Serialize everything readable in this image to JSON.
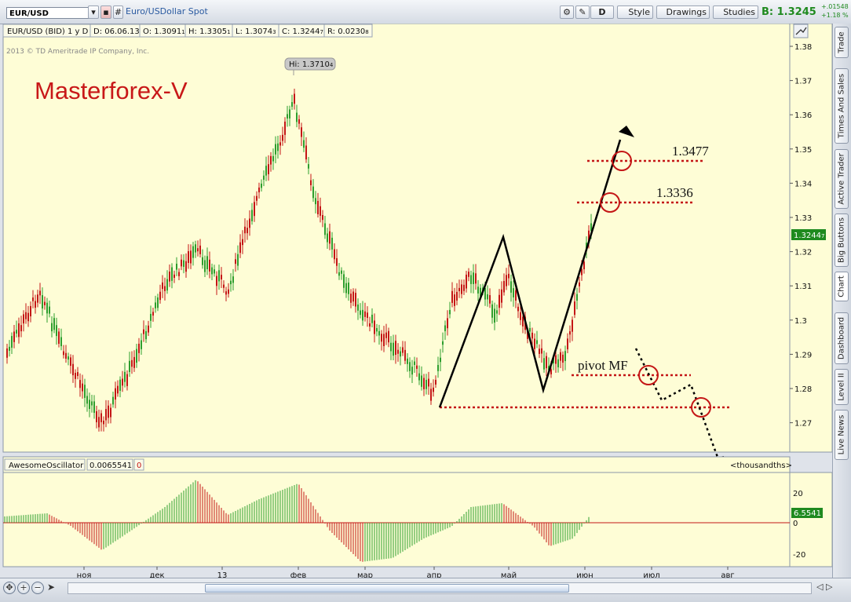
{
  "toolbar": {
    "symbol": "EUR/USD",
    "description": "Euro/USDollar Spot",
    "d_button": "D",
    "style_label": "Style",
    "drawings_label": "Drawings",
    "studies_label": "Studies",
    "bid_label": "B: 1.3245",
    "change_abs": "+.01548",
    "change_pct": "+1.18 %"
  },
  "info_bar": {
    "name": "EUR/USD (BID) 1 y D",
    "date": "D: 06.06.13",
    "open": "O: 1.3091",
    "high": "H: 1.3305",
    "low": "L: 1.3074",
    "close": "C: 1.3244",
    "range": "R: 0.0230",
    "open_sub": "1",
    "high_sub": "1",
    "low_sub": "3",
    "close_sub": "7",
    "range_sub": "8"
  },
  "copyright": "2013 © TD Ameritrade IP Company, Inc.",
  "watermark": "Masterforex-V",
  "hi_label": "Hi: 1.3710",
  "hi_sub": "4",
  "price_tag": "1.3244",
  "price_tag_sub": "7",
  "price_axis": [
    "1.38",
    "1.37",
    "1.36",
    "1.35",
    "1.34",
    "1.33",
    "1.32",
    "1.31",
    "1.3",
    "1.29",
    "1.28",
    "1.27"
  ],
  "annotations": {
    "level1": "1.3477",
    "level2": "1.3336",
    "pivot": "pivot MF"
  },
  "oscillator": {
    "name": "AwesomeOscillator",
    "value": "0.0065541",
    "zero": "0",
    "units": "<thousandths>",
    "axis": [
      "20",
      "0",
      "-20"
    ],
    "tag": "6.5541"
  },
  "time_axis": [
    "ноя",
    "дек",
    "13",
    "фев",
    "мар",
    "апр",
    "май",
    "июн",
    "июл",
    "авг"
  ],
  "sidebar": [
    "Trade",
    "Times And Sales",
    "Active Trader",
    "Big Buttons",
    "Chart",
    "Dashboard",
    "Level II",
    "Live News"
  ],
  "colors": {
    "up": "#2e9e2e",
    "down": "#c41616",
    "chart_bg": "#fefdd6",
    "accent_green": "#1f8a1f",
    "watermark": "#c81818"
  },
  "chart_data": {
    "type": "candlestick",
    "ylim": [
      1.264,
      1.384
    ],
    "oscillator_ylim": [
      -25,
      25
    ],
    "key_levels": [
      1.3477,
      1.3336,
      1.2845,
      1.275
    ],
    "waves": [
      {
        "name": "",
        "points": [
          [
            "апр",
            1.275
          ],
          [
            "май",
            1.3245
          ],
          [
            "май",
            1.28
          ],
          [
            "июн",
            1.3375
          ]
        ]
      }
    ]
  }
}
